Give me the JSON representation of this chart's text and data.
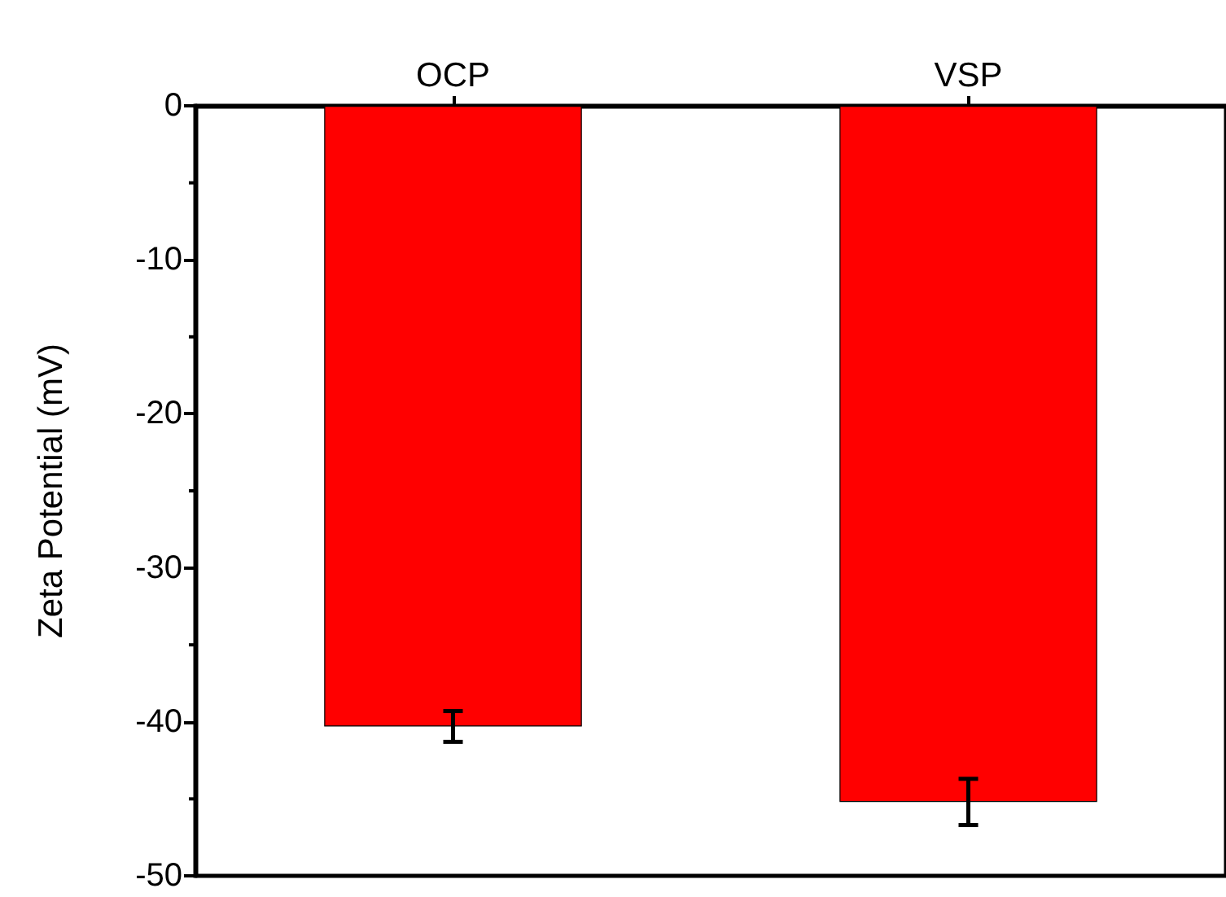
{
  "chart_data": {
    "type": "bar",
    "ylabel": "Zeta Potential (mV)",
    "categories": [
      "OCP",
      "VSP"
    ],
    "values": [
      -40.3,
      -45.2
    ],
    "errors": [
      1,
      1.5
    ],
    "color": "#ff0000",
    "ylim": [
      -50,
      0
    ],
    "yticks": [
      -50,
      -40,
      -30,
      -20,
      -10,
      0
    ],
    "grid": false
  }
}
